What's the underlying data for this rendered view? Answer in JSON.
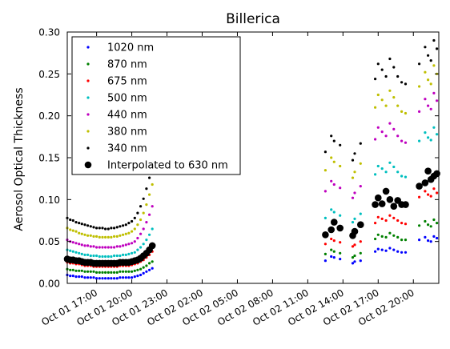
{
  "chart_data": {
    "type": "scatter",
    "title": "Billerica",
    "xlabel": "",
    "ylabel": "Aerosol Optical Thickness",
    "xlim": [
      "2012-10-01 14:30",
      "2012-10-02 22:10"
    ],
    "ylim": [
      0,
      0.3
    ],
    "x_ticks": [
      {
        "t": "2012-10-01 17:00",
        "label": "Oct 01 17:00"
      },
      {
        "t": "2012-10-01 20:00",
        "label": "Oct 01 20:00"
      },
      {
        "t": "2012-10-01 23:00",
        "label": "Oct 01 23:00"
      },
      {
        "t": "2012-10-02 02:00",
        "label": "Oct 02 02:00"
      },
      {
        "t": "2012-10-02 05:00",
        "label": "Oct 02 05:00"
      },
      {
        "t": "2012-10-02 08:00",
        "label": "Oct 02 08:00"
      },
      {
        "t": "2012-10-02 11:00",
        "label": "Oct 02 11:00"
      },
      {
        "t": "2012-10-02 14:00",
        "label": "Oct 02 14:00"
      },
      {
        "t": "2012-10-02 17:00",
        "label": "Oct 02 17:00"
      },
      {
        "t": "2012-10-02 20:00",
        "label": "Oct 02 20:00"
      }
    ],
    "y_ticks": [
      {
        "v": 0.0,
        "label": "0.00"
      },
      {
        "v": 0.05,
        "label": "0.05"
      },
      {
        "v": 0.1,
        "label": "0.10"
      },
      {
        "v": 0.15,
        "label": "0.15"
      },
      {
        "v": 0.2,
        "label": "0.20"
      },
      {
        "v": 0.25,
        "label": "0.25"
      },
      {
        "v": 0.3,
        "label": "0.30"
      }
    ],
    "grid": false,
    "legend_position": "top-left",
    "times": [
      "2012-10-01 14:30",
      "2012-10-01 14:45",
      "2012-10-01 15:00",
      "2012-10-01 15:15",
      "2012-10-01 15:30",
      "2012-10-01 15:45",
      "2012-10-01 16:00",
      "2012-10-01 16:15",
      "2012-10-01 16:30",
      "2012-10-01 16:45",
      "2012-10-01 17:00",
      "2012-10-01 17:15",
      "2012-10-01 17:30",
      "2012-10-01 17:45",
      "2012-10-01 18:00",
      "2012-10-01 18:15",
      "2012-10-01 18:30",
      "2012-10-01 18:45",
      "2012-10-01 19:00",
      "2012-10-01 19:15",
      "2012-10-01 19:30",
      "2012-10-01 19:45",
      "2012-10-01 20:00",
      "2012-10-01 20:15",
      "2012-10-01 20:30",
      "2012-10-01 20:45",
      "2012-10-01 21:00",
      "2012-10-01 21:15",
      "2012-10-01 21:30",
      "2012-10-01 21:45",
      "2012-10-02 12:30",
      "2012-10-02 13:00",
      "2012-10-02 13:15",
      "2012-10-02 13:45",
      "2012-10-02 14:50",
      "2012-10-02 15:00",
      "2012-10-02 15:30",
      "2012-10-02 16:45",
      "2012-10-02 17:00",
      "2012-10-02 17:20",
      "2012-10-02 17:40",
      "2012-10-02 18:00",
      "2012-10-02 18:20",
      "2012-10-02 18:40",
      "2012-10-02 19:00",
      "2012-10-02 19:20",
      "2012-10-02 20:30",
      "2012-10-02 21:00",
      "2012-10-02 21:15",
      "2012-10-02 21:30",
      "2012-10-02 21:45",
      "2012-10-02 22:00"
    ],
    "series": [
      {
        "name": "1020 nm",
        "color": "#0000ff",
        "marker": "small-dot",
        "values": [
          0.01,
          0.009,
          0.009,
          0.008,
          0.008,
          0.008,
          0.007,
          0.007,
          0.007,
          0.007,
          0.006,
          0.006,
          0.006,
          0.006,
          0.006,
          0.006,
          0.006,
          0.006,
          0.007,
          0.007,
          0.007,
          0.007,
          0.007,
          0.008,
          0.009,
          0.01,
          0.012,
          0.014,
          0.016,
          0.018,
          0.027,
          0.032,
          0.031,
          0.029,
          0.024,
          0.026,
          0.027,
          0.038,
          0.041,
          0.04,
          0.039,
          0.042,
          0.04,
          0.038,
          0.037,
          0.037,
          0.052,
          0.055,
          0.051,
          0.05,
          0.056,
          0.054
        ]
      },
      {
        "name": "870 nm",
        "color": "#008000",
        "marker": "small-dot",
        "values": [
          0.017,
          0.016,
          0.016,
          0.015,
          0.015,
          0.015,
          0.014,
          0.014,
          0.014,
          0.014,
          0.013,
          0.013,
          0.013,
          0.013,
          0.013,
          0.013,
          0.013,
          0.013,
          0.014,
          0.014,
          0.014,
          0.014,
          0.014,
          0.015,
          0.016,
          0.017,
          0.019,
          0.021,
          0.024,
          0.026,
          0.035,
          0.04,
          0.038,
          0.036,
          0.031,
          0.033,
          0.036,
          0.053,
          0.058,
          0.056,
          0.055,
          0.06,
          0.057,
          0.055,
          0.052,
          0.052,
          0.069,
          0.074,
          0.07,
          0.068,
          0.076,
          0.072
        ]
      },
      {
        "name": "675 nm",
        "color": "#ff0000",
        "marker": "small-dot",
        "values": [
          0.025,
          0.024,
          0.024,
          0.023,
          0.023,
          0.022,
          0.021,
          0.021,
          0.021,
          0.02,
          0.02,
          0.02,
          0.02,
          0.02,
          0.02,
          0.02,
          0.02,
          0.02,
          0.021,
          0.021,
          0.021,
          0.021,
          0.022,
          0.023,
          0.024,
          0.026,
          0.028,
          0.031,
          0.034,
          0.038,
          0.047,
          0.053,
          0.051,
          0.049,
          0.044,
          0.046,
          0.05,
          0.072,
          0.079,
          0.077,
          0.075,
          0.081,
          0.078,
          0.075,
          0.072,
          0.071,
          0.103,
          0.11,
          0.106,
          0.104,
          0.113,
          0.108
        ]
      },
      {
        "name": "500 nm",
        "color": "#00bfbf",
        "marker": "small-dot",
        "values": [
          0.04,
          0.039,
          0.038,
          0.037,
          0.036,
          0.035,
          0.034,
          0.034,
          0.033,
          0.033,
          0.033,
          0.032,
          0.032,
          0.032,
          0.032,
          0.032,
          0.033,
          0.033,
          0.033,
          0.034,
          0.034,
          0.035,
          0.036,
          0.037,
          0.04,
          0.043,
          0.047,
          0.052,
          0.058,
          0.065,
          0.078,
          0.088,
          0.085,
          0.081,
          0.073,
          0.077,
          0.083,
          0.13,
          0.14,
          0.137,
          0.133,
          0.144,
          0.139,
          0.133,
          0.128,
          0.127,
          0.17,
          0.18,
          0.174,
          0.171,
          0.186,
          0.178
        ]
      },
      {
        "name": "440 nm",
        "color": "#bf00bf",
        "marker": "small-dot",
        "values": [
          0.052,
          0.05,
          0.049,
          0.048,
          0.047,
          0.046,
          0.045,
          0.045,
          0.044,
          0.044,
          0.043,
          0.043,
          0.043,
          0.043,
          0.043,
          0.043,
          0.043,
          0.044,
          0.044,
          0.045,
          0.046,
          0.047,
          0.048,
          0.05,
          0.054,
          0.059,
          0.065,
          0.073,
          0.082,
          0.092,
          0.11,
          0.122,
          0.118,
          0.114,
          0.102,
          0.108,
          0.116,
          0.172,
          0.186,
          0.181,
          0.176,
          0.191,
          0.184,
          0.176,
          0.17,
          0.168,
          0.205,
          0.22,
          0.212,
          0.208,
          0.227,
          0.218
        ]
      },
      {
        "name": "380 nm",
        "color": "#bfbf00",
        "marker": "small-dot",
        "values": [
          0.066,
          0.064,
          0.063,
          0.062,
          0.06,
          0.059,
          0.058,
          0.057,
          0.057,
          0.056,
          0.056,
          0.055,
          0.055,
          0.055,
          0.055,
          0.055,
          0.056,
          0.056,
          0.057,
          0.058,
          0.059,
          0.06,
          0.062,
          0.065,
          0.07,
          0.076,
          0.084,
          0.094,
          0.106,
          0.118,
          0.135,
          0.15,
          0.145,
          0.14,
          0.126,
          0.133,
          0.143,
          0.21,
          0.225,
          0.219,
          0.212,
          0.23,
          0.222,
          0.212,
          0.205,
          0.203,
          0.235,
          0.252,
          0.243,
          0.238,
          0.26,
          0.25
        ]
      },
      {
        "name": "340 nm",
        "color": "#000000",
        "marker": "small-dot",
        "values": [
          0.078,
          0.076,
          0.075,
          0.073,
          0.072,
          0.071,
          0.07,
          0.069,
          0.068,
          0.067,
          0.066,
          0.066,
          0.066,
          0.065,
          0.065,
          0.066,
          0.066,
          0.067,
          0.068,
          0.069,
          0.07,
          0.072,
          0.074,
          0.078,
          0.084,
          0.092,
          0.101,
          0.113,
          0.126,
          0.14,
          0.157,
          0.176,
          0.17,
          0.165,
          0.147,
          0.155,
          0.167,
          0.244,
          0.262,
          0.255,
          0.247,
          0.268,
          0.258,
          0.247,
          0.24,
          0.238,
          0.262,
          0.282,
          0.272,
          0.266,
          0.29,
          0.28
        ]
      },
      {
        "name": "Interpolated to 630 nm",
        "color": "#000000",
        "marker": "large-dot",
        "values": [
          0.029,
          0.028,
          0.028,
          0.027,
          0.027,
          0.026,
          0.025,
          0.025,
          0.025,
          0.024,
          0.024,
          0.024,
          0.024,
          0.024,
          0.024,
          0.024,
          0.024,
          0.024,
          0.025,
          0.025,
          0.025,
          0.025,
          0.026,
          0.027,
          0.028,
          0.03,
          0.033,
          0.036,
          0.04,
          0.045,
          0.058,
          0.064,
          0.073,
          0.066,
          0.057,
          0.062,
          0.07,
          0.094,
          0.102,
          0.095,
          0.11,
          0.1,
          0.092,
          0.099,
          0.094,
          0.094,
          0.116,
          0.12,
          0.134,
          0.124,
          0.128,
          0.131
        ]
      }
    ]
  }
}
